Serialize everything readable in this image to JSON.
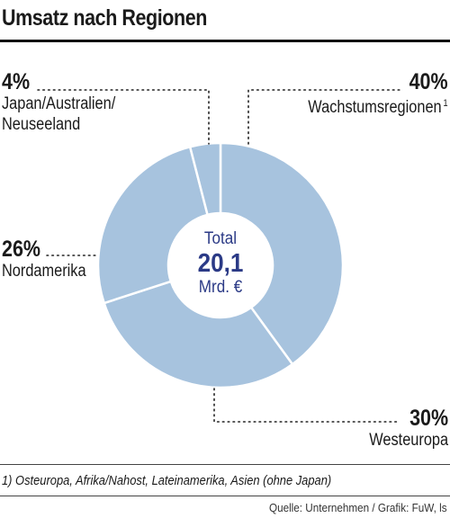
{
  "title": "Umsatz nach Regionen",
  "chart_data": {
    "type": "pie",
    "variant": "donut",
    "title": "Umsatz nach Regionen",
    "slices": [
      {
        "label": "Wachstumsregionen",
        "footnote_marker": "1",
        "value": 40,
        "value_label": "40%"
      },
      {
        "label": "Westeuropa",
        "footnote_marker": "",
        "value": 30,
        "value_label": "30%"
      },
      {
        "label": "Nordamerika",
        "footnote_marker": "",
        "value": 26,
        "value_label": "26%"
      },
      {
        "label": "Japan/Australien/ Neuseeland",
        "footnote_marker": "",
        "value": 4,
        "value_label": "4%"
      }
    ],
    "center": {
      "line1": "Total",
      "value": "20,1",
      "line3": "Mrd. €"
    },
    "slice_color": "#a7c3de",
    "separator_color": "#ffffff",
    "center_text_color": "#2b3a86"
  },
  "footnote": "1) Osteuropa, Afrika/Nahost, Lateinamerika, Asien (ohne Japan)",
  "source": "Quelle: Unternehmen / Grafik: FuW, ls"
}
